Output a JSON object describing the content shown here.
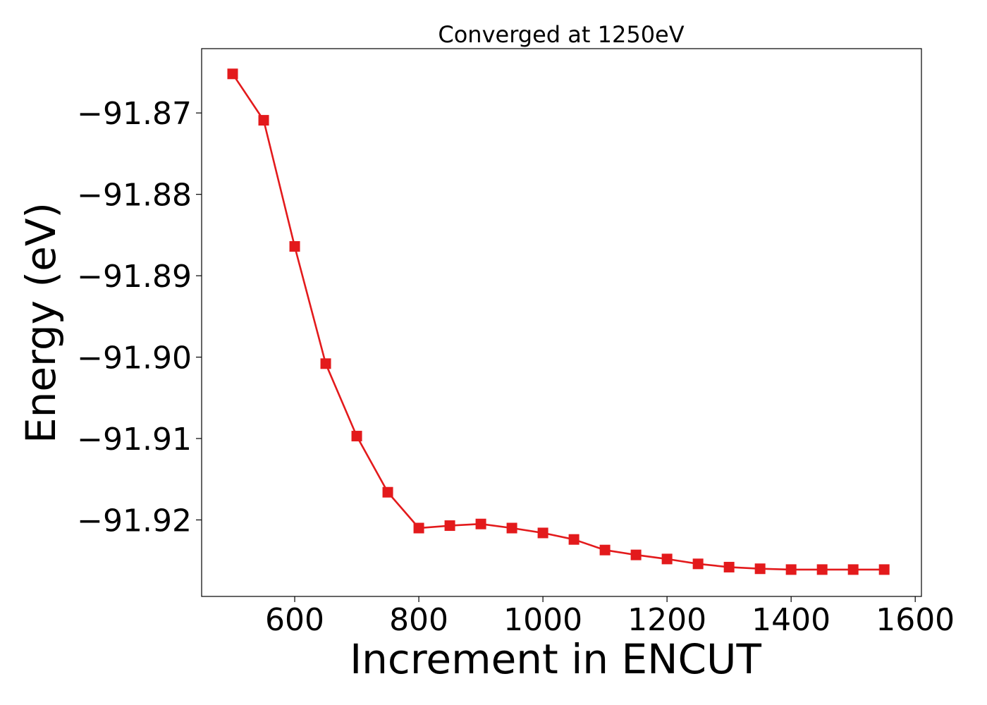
{
  "chart_data": {
    "type": "line",
    "title": "Converged at 1250eV",
    "xlabel": "Increment in ENCUT",
    "ylabel": "Energy (eV)",
    "xlim": [
      450,
      1610
    ],
    "ylim": [
      -91.9294,
      -91.8621
    ],
    "xticks": [
      600,
      800,
      1000,
      1200,
      1400,
      1600
    ],
    "yticks": [
      -91.92,
      -91.91,
      -91.9,
      -91.89,
      -91.88,
      -91.87
    ],
    "ytick_labels": [
      "−91.92",
      "−91.91",
      "−91.90",
      "−91.89",
      "−91.88",
      "−91.87"
    ],
    "grid": false,
    "series": [
      {
        "color": "#e31a1c",
        "marker": "square",
        "x": [
          500,
          550,
          600,
          650,
          700,
          750,
          800,
          850,
          900,
          950,
          1000,
          1050,
          1100,
          1150,
          1200,
          1250,
          1300,
          1350,
          1400,
          1450,
          1500,
          1550
        ],
        "y": [
          -91.8652,
          -91.8709,
          -91.8864,
          -91.9008,
          -91.9097,
          -91.9166,
          -91.921,
          -91.9207,
          -91.9205,
          -91.921,
          -91.9216,
          -91.9224,
          -91.9237,
          -91.9243,
          -91.9248,
          -91.9254,
          -91.9258,
          -91.926,
          -91.9261,
          -91.9261,
          -91.9261,
          -91.9261
        ]
      }
    ]
  }
}
